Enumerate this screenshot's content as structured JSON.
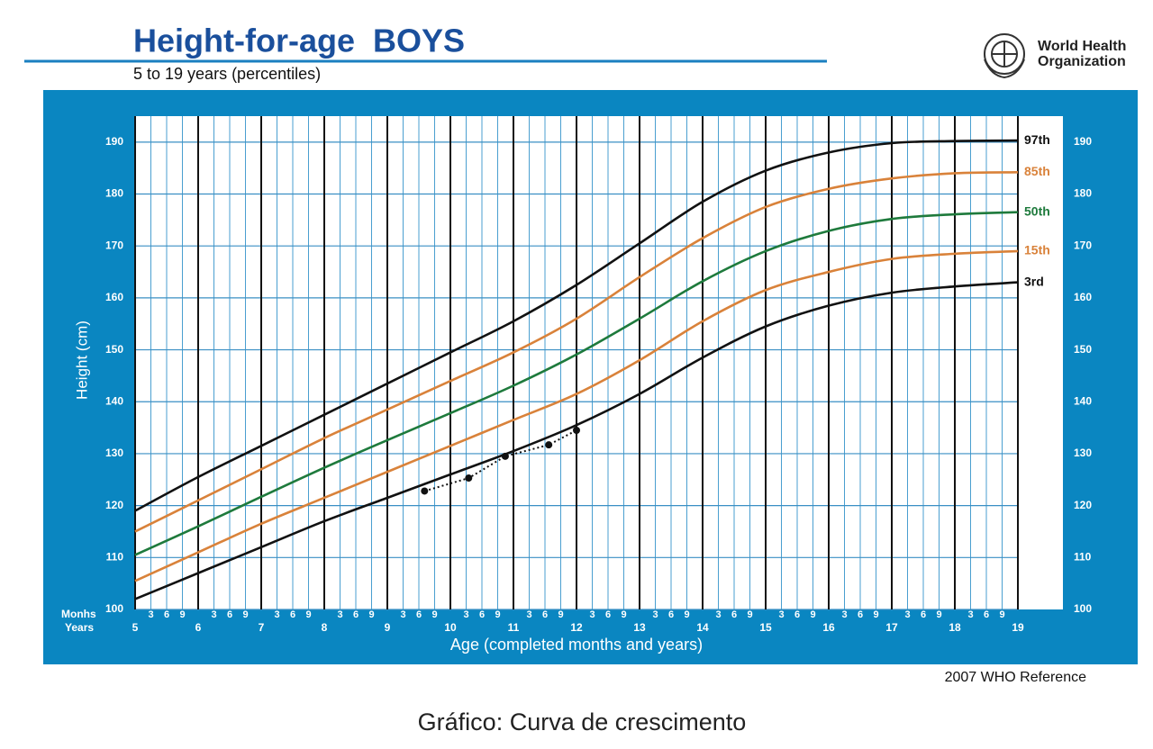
{
  "chart_data": {
    "type": "line",
    "title": "Height-for-age  BOYS",
    "subtitle": "5 to 19 years (percentiles)",
    "organization": [
      "World Health",
      "Organization"
    ],
    "source": "2007 WHO Reference",
    "caption": "Gráfico: Curva de crescimento",
    "y_label": "Height (cm)",
    "x_label": "Age (completed months and years)",
    "months_label": "Monhs",
    "years_label": "Years",
    "x": [
      5,
      6,
      7,
      8,
      9,
      10,
      11,
      12,
      13,
      14,
      15,
      16,
      17,
      18,
      19
    ],
    "xlim": [
      5,
      19
    ],
    "xticks": [
      5,
      6,
      7,
      8,
      9,
      10,
      11,
      12,
      13,
      14,
      15,
      16,
      17,
      18,
      19
    ],
    "minor_xticks": [
      {
        "value": 5.25,
        "label": "3"
      },
      {
        "value": 5.5,
        "label": "6"
      },
      {
        "value": 5.75,
        "label": "9"
      },
      {
        "value": 6.25,
        "label": "3"
      },
      {
        "value": 6.5,
        "label": "6"
      },
      {
        "value": 6.75,
        "label": "9"
      },
      {
        "value": 7.25,
        "label": "3"
      },
      {
        "value": 7.5,
        "label": "6"
      },
      {
        "value": 7.75,
        "label": "9"
      },
      {
        "value": 8.25,
        "label": "3"
      },
      {
        "value": 8.5,
        "label": "6"
      },
      {
        "value": 8.75,
        "label": "9"
      },
      {
        "value": 9.25,
        "label": "3"
      },
      {
        "value": 9.5,
        "label": "6"
      },
      {
        "value": 9.75,
        "label": "9"
      },
      {
        "value": 10.25,
        "label": "3"
      },
      {
        "value": 10.5,
        "label": "6"
      },
      {
        "value": 10.75,
        "label": "9"
      },
      {
        "value": 11.25,
        "label": "3"
      },
      {
        "value": 11.5,
        "label": "6"
      },
      {
        "value": 11.75,
        "label": "9"
      },
      {
        "value": 12.25,
        "label": "3"
      },
      {
        "value": 12.5,
        "label": "6"
      },
      {
        "value": 12.75,
        "label": "9"
      },
      {
        "value": 13.25,
        "label": "3"
      },
      {
        "value": 13.5,
        "label": "6"
      },
      {
        "value": 13.75,
        "label": "9"
      },
      {
        "value": 14.25,
        "label": "3"
      },
      {
        "value": 14.5,
        "label": "6"
      },
      {
        "value": 14.75,
        "label": "9"
      },
      {
        "value": 15.25,
        "label": "3"
      },
      {
        "value": 15.5,
        "label": "6"
      },
      {
        "value": 15.75,
        "label": "9"
      },
      {
        "value": 16.25,
        "label": "3"
      },
      {
        "value": 16.5,
        "label": "6"
      },
      {
        "value": 16.75,
        "label": "9"
      },
      {
        "value": 17.25,
        "label": "3"
      },
      {
        "value": 17.5,
        "label": "6"
      },
      {
        "value": 17.75,
        "label": "9"
      },
      {
        "value": 18.25,
        "label": "3"
      },
      {
        "value": 18.5,
        "label": "6"
      },
      {
        "value": 18.75,
        "label": "9"
      }
    ],
    "ylim": [
      100,
      195
    ],
    "yticks": [
      100,
      110,
      120,
      130,
      140,
      150,
      160,
      170,
      180,
      190
    ],
    "grid": true,
    "series": [
      {
        "name": "97th",
        "color": "#111111",
        "values": [
          119,
          125.5,
          131.5,
          137.5,
          143.5,
          149.5,
          155.5,
          162.5,
          170.5,
          178.5,
          184.5,
          188,
          189.8,
          190.2,
          190.3
        ]
      },
      {
        "name": "85th",
        "color": "#d9823a",
        "values": [
          115,
          121,
          127,
          133,
          138.5,
          144,
          149.5,
          156,
          164,
          171.5,
          177.5,
          181,
          183,
          184,
          184.2
        ]
      },
      {
        "name": "50th",
        "color": "#1e7a3c",
        "values": [
          110.5,
          116,
          121.7,
          127.3,
          132.6,
          137.8,
          143.1,
          149.1,
          156,
          163.2,
          169,
          172.9,
          175.2,
          176.1,
          176.5
        ]
      },
      {
        "name": "15th",
        "color": "#d9823a",
        "values": [
          105.5,
          111,
          116.5,
          121.5,
          126.5,
          131.5,
          136.5,
          141.5,
          148,
          155.5,
          161.5,
          165,
          167.5,
          168.5,
          169
        ]
      },
      {
        "name": "3rd",
        "color": "#111111",
        "values": [
          102,
          107,
          112,
          117,
          121.5,
          126,
          130.5,
          135.5,
          141.5,
          148.5,
          154.5,
          158.5,
          161,
          162.2,
          163
        ]
      }
    ],
    "measurements": {
      "color": "#111111",
      "x": [
        9.59,
        10.29,
        10.87,
        11.56,
        12.0
      ],
      "values": [
        122.8,
        125.3,
        129.5,
        131.7,
        134.5
      ]
    }
  }
}
